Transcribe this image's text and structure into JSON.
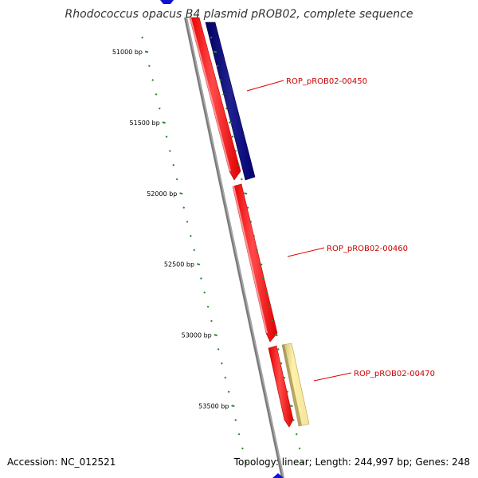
{
  "title": "Rhodococcus opacus B4 plasmid pROB02, complete sequence",
  "footer": {
    "accession": "Accession: NC_012521",
    "summary": "Topology: linear; Length: 244,997 bp; Genes: 248"
  },
  "chart_data": {
    "type": "diagram",
    "unit_suffix": " bp",
    "ticks": [
      51000,
      51500,
      52000,
      52500,
      53000,
      53500
    ],
    "genes": [
      {
        "label": "ROP_pROB02-00450"
      },
      {
        "label": "ROP_pROB02-00460"
      },
      {
        "label": "ROP_pROB02-00470"
      }
    ]
  }
}
